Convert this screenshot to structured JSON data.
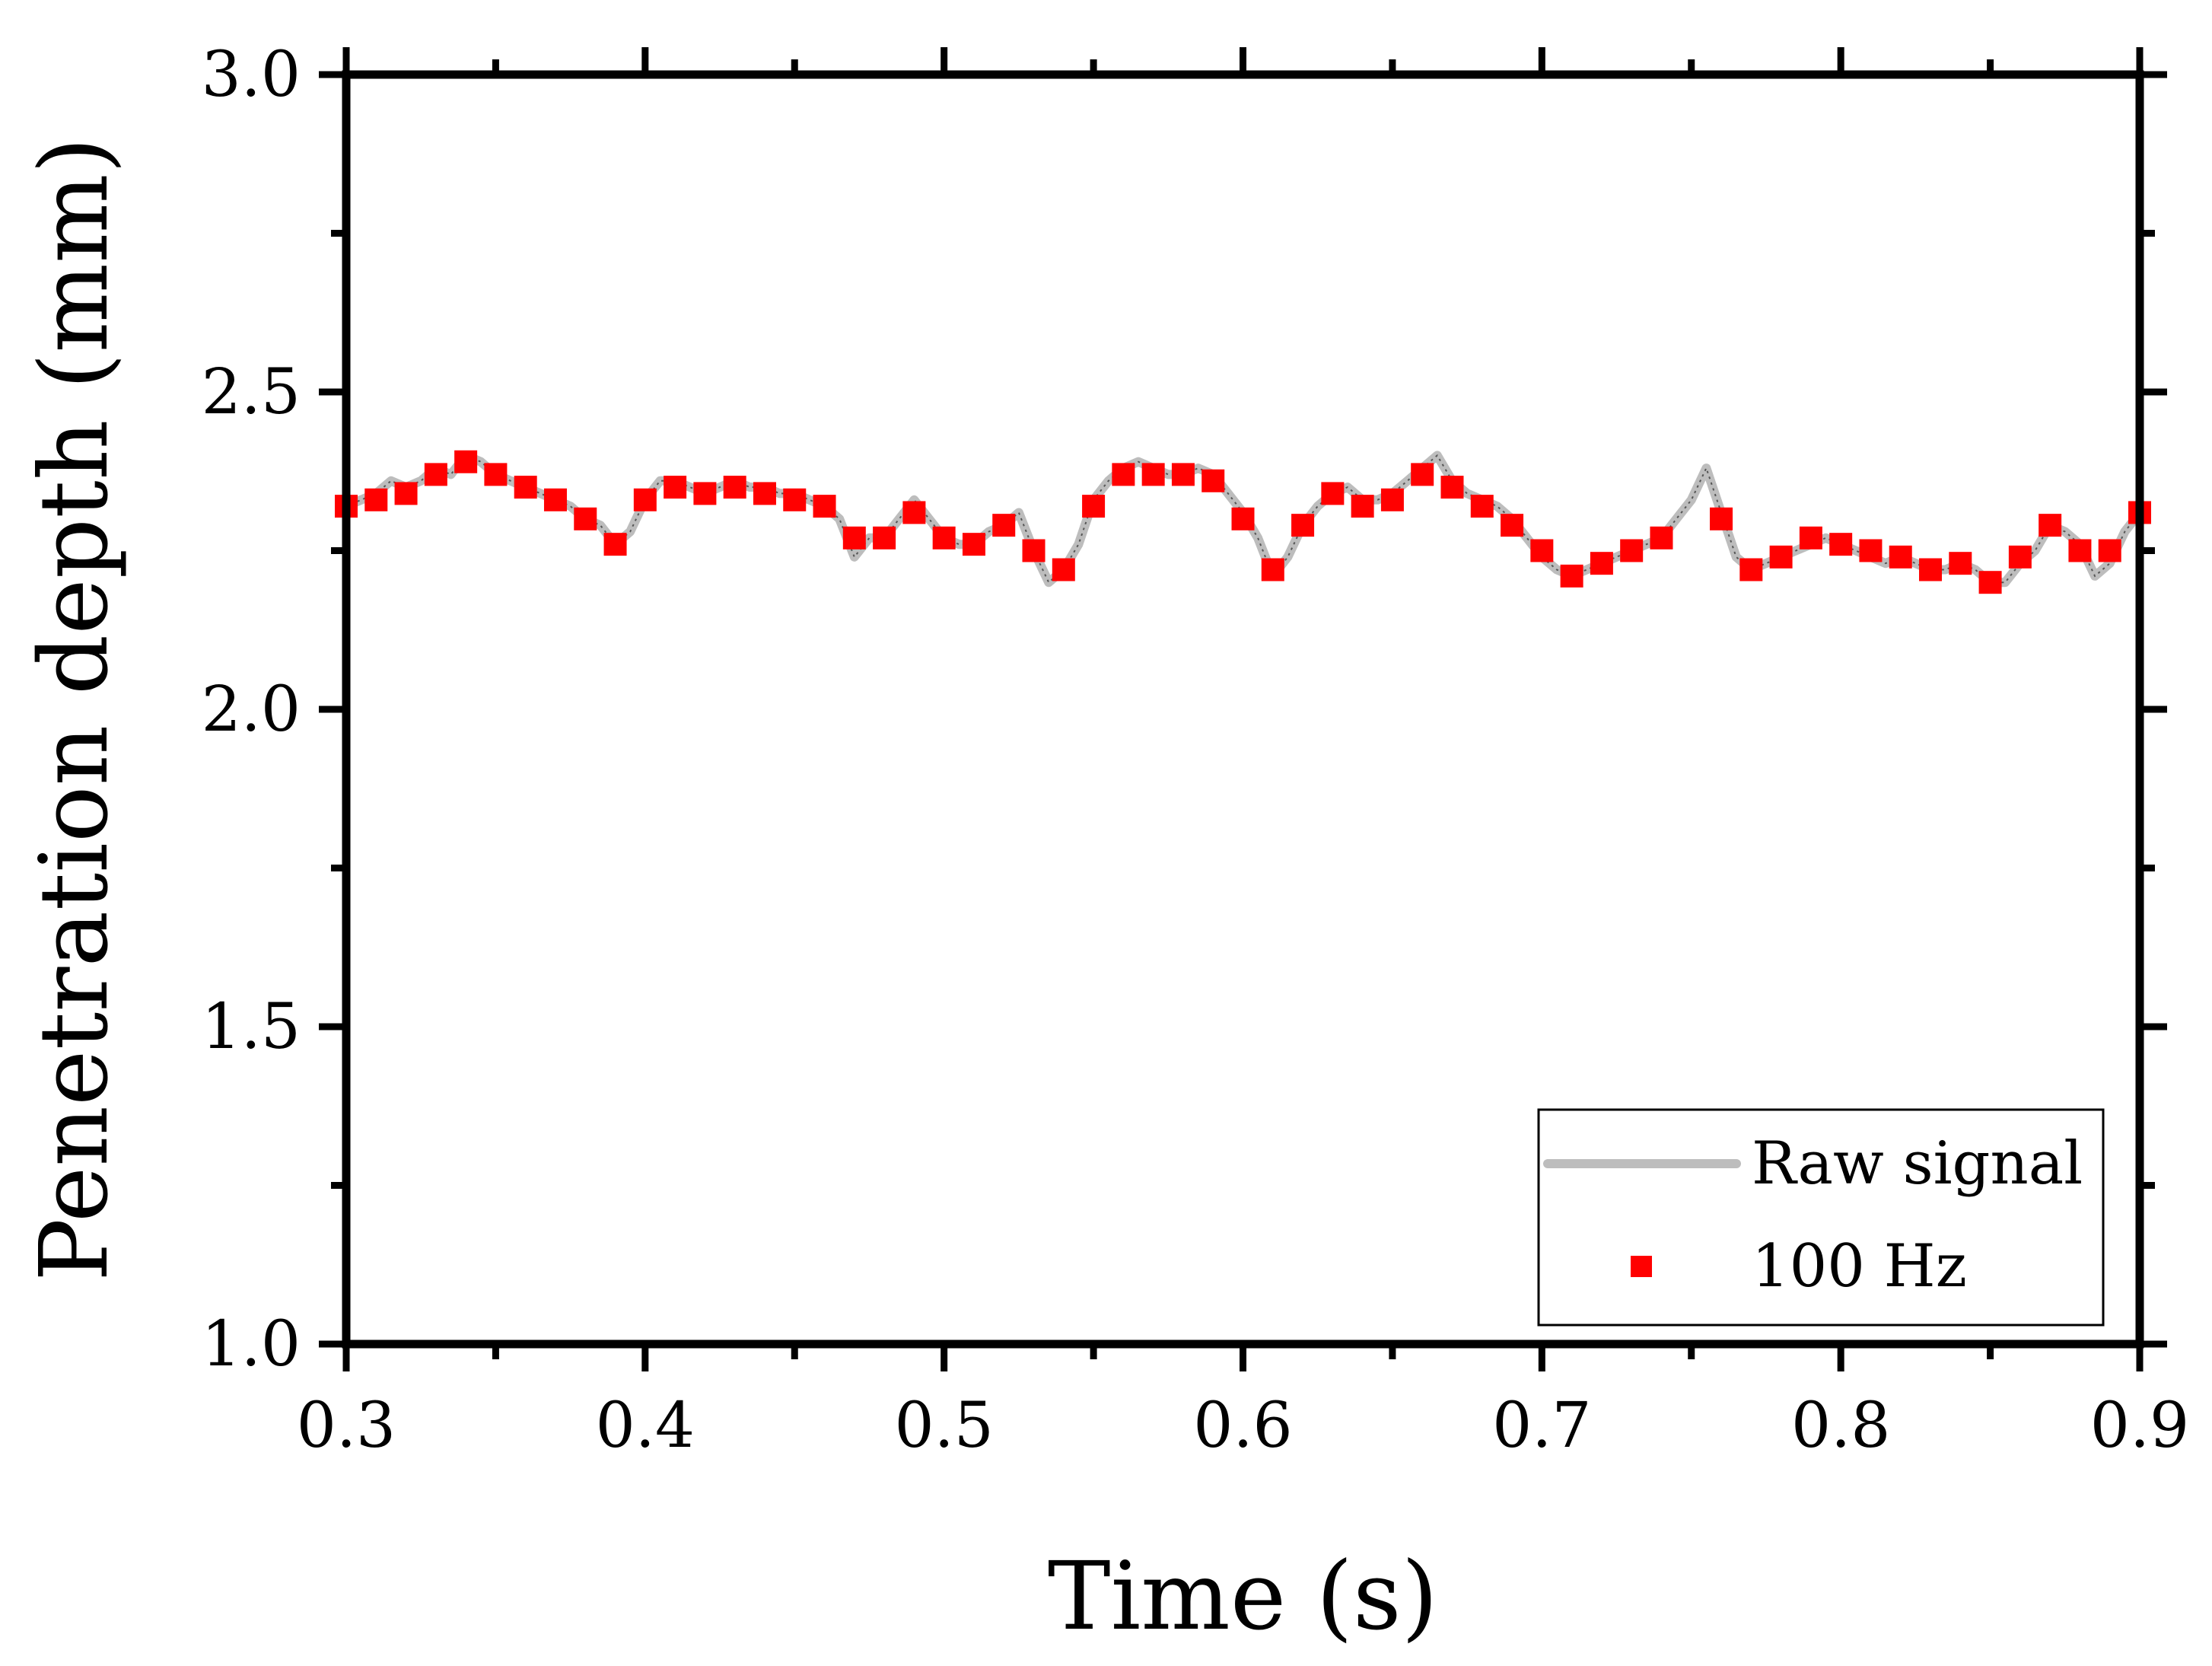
{
  "chart_data": {
    "type": "line",
    "title": "",
    "xlabel": "Time (s)",
    "ylabel": "Penetration depth (mm)",
    "xlim": [
      0.3,
      0.9
    ],
    "ylim": [
      1.0,
      3.0
    ],
    "x_ticks": [
      0.3,
      0.4,
      0.5,
      0.6,
      0.7,
      0.8,
      0.9
    ],
    "x_tick_labels": [
      "0.3",
      "0.4",
      "0.5",
      "0.6",
      "0.7",
      "0.8",
      "0.9"
    ],
    "y_ticks": [
      1.0,
      1.5,
      2.0,
      2.5,
      3.0
    ],
    "y_tick_labels": [
      "1.0",
      "1.5",
      "2.0",
      "2.5",
      "3.0"
    ],
    "legend_position": "bottom-right",
    "grid": false,
    "series": [
      {
        "name": "Raw signal",
        "style": "line",
        "color": "#bdbdbd",
        "x": [
          0.3,
          0.305,
          0.31,
          0.315,
          0.32,
          0.325,
          0.33,
          0.335,
          0.34,
          0.345,
          0.35,
          0.355,
          0.36,
          0.365,
          0.37,
          0.375,
          0.38,
          0.385,
          0.39,
          0.395,
          0.4,
          0.405,
          0.41,
          0.415,
          0.42,
          0.425,
          0.43,
          0.435,
          0.44,
          0.445,
          0.45,
          0.455,
          0.46,
          0.465,
          0.47,
          0.475,
          0.48,
          0.485,
          0.49,
          0.495,
          0.5,
          0.505,
          0.51,
          0.515,
          0.52,
          0.525,
          0.53,
          0.535,
          0.54,
          0.545,
          0.55,
          0.555,
          0.56,
          0.565,
          0.57,
          0.575,
          0.58,
          0.585,
          0.59,
          0.595,
          0.6,
          0.605,
          0.61,
          0.615,
          0.62,
          0.625,
          0.63,
          0.635,
          0.64,
          0.645,
          0.65,
          0.655,
          0.66,
          0.665,
          0.67,
          0.675,
          0.68,
          0.685,
          0.69,
          0.695,
          0.7,
          0.705,
          0.71,
          0.715,
          0.72,
          0.725,
          0.73,
          0.735,
          0.74,
          0.745,
          0.75,
          0.755,
          0.76,
          0.765,
          0.77,
          0.775,
          0.78,
          0.785,
          0.79,
          0.795,
          0.8,
          0.805,
          0.81,
          0.815,
          0.82,
          0.825,
          0.83,
          0.835,
          0.84,
          0.845,
          0.85,
          0.855,
          0.86,
          0.865,
          0.87,
          0.875,
          0.88,
          0.885,
          0.89,
          0.895,
          0.9
        ],
        "y": [
          2.32,
          2.33,
          2.34,
          2.36,
          2.35,
          2.36,
          2.38,
          2.37,
          2.4,
          2.39,
          2.37,
          2.36,
          2.35,
          2.34,
          2.33,
          2.32,
          2.3,
          2.29,
          2.26,
          2.28,
          2.33,
          2.36,
          2.36,
          2.35,
          2.34,
          2.35,
          2.36,
          2.35,
          2.35,
          2.34,
          2.34,
          2.33,
          2.32,
          2.3,
          2.24,
          2.27,
          2.27,
          2.3,
          2.33,
          2.3,
          2.27,
          2.26,
          2.26,
          2.28,
          2.29,
          2.31,
          2.25,
          2.2,
          2.22,
          2.26,
          2.33,
          2.36,
          2.38,
          2.39,
          2.38,
          2.37,
          2.37,
          2.38,
          2.37,
          2.34,
          2.31,
          2.27,
          2.21,
          2.24,
          2.29,
          2.32,
          2.34,
          2.35,
          2.33,
          2.33,
          2.34,
          2.36,
          2.38,
          2.4,
          2.36,
          2.34,
          2.33,
          2.32,
          2.3,
          2.27,
          2.24,
          2.22,
          2.21,
          2.22,
          2.23,
          2.24,
          2.25,
          2.26,
          2.27,
          2.3,
          2.33,
          2.38,
          2.31,
          2.24,
          2.22,
          2.23,
          2.24,
          2.25,
          2.26,
          2.27,
          2.26,
          2.25,
          2.24,
          2.23,
          2.24,
          2.23,
          2.22,
          2.22,
          2.23,
          2.22,
          2.2,
          2.2,
          2.23,
          2.25,
          2.29,
          2.28,
          2.26,
          2.21,
          2.23,
          2.28,
          2.31
        ]
      },
      {
        "name": "100 Hz",
        "style": "markers",
        "color": "#ff0000",
        "x": [
          0.3,
          0.31,
          0.32,
          0.33,
          0.34,
          0.35,
          0.36,
          0.37,
          0.38,
          0.39,
          0.4,
          0.41,
          0.42,
          0.43,
          0.44,
          0.45,
          0.46,
          0.47,
          0.48,
          0.49,
          0.5,
          0.51,
          0.52,
          0.53,
          0.54,
          0.55,
          0.56,
          0.57,
          0.58,
          0.59,
          0.6,
          0.61,
          0.62,
          0.63,
          0.64,
          0.65,
          0.66,
          0.67,
          0.68,
          0.69,
          0.7,
          0.71,
          0.72,
          0.73,
          0.74,
          0.75,
          0.76,
          0.77,
          0.78,
          0.79,
          0.8,
          0.81,
          0.82,
          0.83,
          0.84,
          0.85,
          0.86,
          0.87,
          0.88,
          0.89,
          0.9
        ],
        "y": [
          2.32,
          2.33,
          2.34,
          2.37,
          2.39,
          2.37,
          2.35,
          2.33,
          2.3,
          2.26,
          2.33,
          2.35,
          2.34,
          2.35,
          2.34,
          2.33,
          2.32,
          2.27,
          2.27,
          2.31,
          2.27,
          2.26,
          2.29,
          2.25,
          2.22,
          2.32,
          2.37,
          2.37,
          2.37,
          2.36,
          2.3,
          2.22,
          2.29,
          2.34,
          2.32,
          2.33,
          2.37,
          2.35,
          2.32,
          2.29,
          2.25,
          2.21,
          2.23,
          2.25,
          2.27,
          null,
          2.3,
          2.22,
          2.24,
          2.27,
          2.26,
          2.25,
          2.24,
          2.22,
          2.23,
          2.2,
          2.24,
          2.29,
          2.25,
          2.25,
          2.31
        ]
      }
    ]
  }
}
